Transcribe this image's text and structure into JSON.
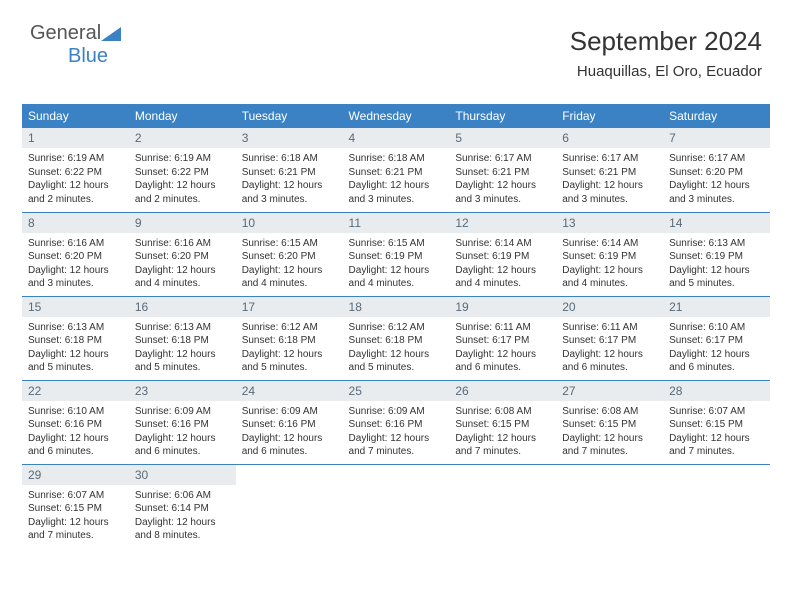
{
  "brand": {
    "name1": "General",
    "name2": "Blue"
  },
  "header": {
    "title": "September 2024",
    "location": "Huaquillas, El Oro, Ecuador"
  },
  "calendar": {
    "headers": [
      "Sunday",
      "Monday",
      "Tuesday",
      "Wednesday",
      "Thursday",
      "Friday",
      "Saturday"
    ],
    "header_bg": "#3b82c4",
    "header_fg": "#ffffff",
    "daynum_bg": "#e8ecef",
    "border_color": "#3b82c4",
    "weeks": [
      [
        {
          "n": "1",
          "sr": "6:19 AM",
          "ss": "6:22 PM",
          "dl": "12 hours and 2 minutes."
        },
        {
          "n": "2",
          "sr": "6:19 AM",
          "ss": "6:22 PM",
          "dl": "12 hours and 2 minutes."
        },
        {
          "n": "3",
          "sr": "6:18 AM",
          "ss": "6:21 PM",
          "dl": "12 hours and 3 minutes."
        },
        {
          "n": "4",
          "sr": "6:18 AM",
          "ss": "6:21 PM",
          "dl": "12 hours and 3 minutes."
        },
        {
          "n": "5",
          "sr": "6:17 AM",
          "ss": "6:21 PM",
          "dl": "12 hours and 3 minutes."
        },
        {
          "n": "6",
          "sr": "6:17 AM",
          "ss": "6:21 PM",
          "dl": "12 hours and 3 minutes."
        },
        {
          "n": "7",
          "sr": "6:17 AM",
          "ss": "6:20 PM",
          "dl": "12 hours and 3 minutes."
        }
      ],
      [
        {
          "n": "8",
          "sr": "6:16 AM",
          "ss": "6:20 PM",
          "dl": "12 hours and 3 minutes."
        },
        {
          "n": "9",
          "sr": "6:16 AM",
          "ss": "6:20 PM",
          "dl": "12 hours and 4 minutes."
        },
        {
          "n": "10",
          "sr": "6:15 AM",
          "ss": "6:20 PM",
          "dl": "12 hours and 4 minutes."
        },
        {
          "n": "11",
          "sr": "6:15 AM",
          "ss": "6:19 PM",
          "dl": "12 hours and 4 minutes."
        },
        {
          "n": "12",
          "sr": "6:14 AM",
          "ss": "6:19 PM",
          "dl": "12 hours and 4 minutes."
        },
        {
          "n": "13",
          "sr": "6:14 AM",
          "ss": "6:19 PM",
          "dl": "12 hours and 4 minutes."
        },
        {
          "n": "14",
          "sr": "6:13 AM",
          "ss": "6:19 PM",
          "dl": "12 hours and 5 minutes."
        }
      ],
      [
        {
          "n": "15",
          "sr": "6:13 AM",
          "ss": "6:18 PM",
          "dl": "12 hours and 5 minutes."
        },
        {
          "n": "16",
          "sr": "6:13 AM",
          "ss": "6:18 PM",
          "dl": "12 hours and 5 minutes."
        },
        {
          "n": "17",
          "sr": "6:12 AM",
          "ss": "6:18 PM",
          "dl": "12 hours and 5 minutes."
        },
        {
          "n": "18",
          "sr": "6:12 AM",
          "ss": "6:18 PM",
          "dl": "12 hours and 5 minutes."
        },
        {
          "n": "19",
          "sr": "6:11 AM",
          "ss": "6:17 PM",
          "dl": "12 hours and 6 minutes."
        },
        {
          "n": "20",
          "sr": "6:11 AM",
          "ss": "6:17 PM",
          "dl": "12 hours and 6 minutes."
        },
        {
          "n": "21",
          "sr": "6:10 AM",
          "ss": "6:17 PM",
          "dl": "12 hours and 6 minutes."
        }
      ],
      [
        {
          "n": "22",
          "sr": "6:10 AM",
          "ss": "6:16 PM",
          "dl": "12 hours and 6 minutes."
        },
        {
          "n": "23",
          "sr": "6:09 AM",
          "ss": "6:16 PM",
          "dl": "12 hours and 6 minutes."
        },
        {
          "n": "24",
          "sr": "6:09 AM",
          "ss": "6:16 PM",
          "dl": "12 hours and 6 minutes."
        },
        {
          "n": "25",
          "sr": "6:09 AM",
          "ss": "6:16 PM",
          "dl": "12 hours and 7 minutes."
        },
        {
          "n": "26",
          "sr": "6:08 AM",
          "ss": "6:15 PM",
          "dl": "12 hours and 7 minutes."
        },
        {
          "n": "27",
          "sr": "6:08 AM",
          "ss": "6:15 PM",
          "dl": "12 hours and 7 minutes."
        },
        {
          "n": "28",
          "sr": "6:07 AM",
          "ss": "6:15 PM",
          "dl": "12 hours and 7 minutes."
        }
      ],
      [
        {
          "n": "29",
          "sr": "6:07 AM",
          "ss": "6:15 PM",
          "dl": "12 hours and 7 minutes."
        },
        {
          "n": "30",
          "sr": "6:06 AM",
          "ss": "6:14 PM",
          "dl": "12 hours and 8 minutes."
        },
        null,
        null,
        null,
        null,
        null
      ]
    ],
    "labels": {
      "sunrise": "Sunrise:",
      "sunset": "Sunset:",
      "daylight": "Daylight:"
    }
  }
}
